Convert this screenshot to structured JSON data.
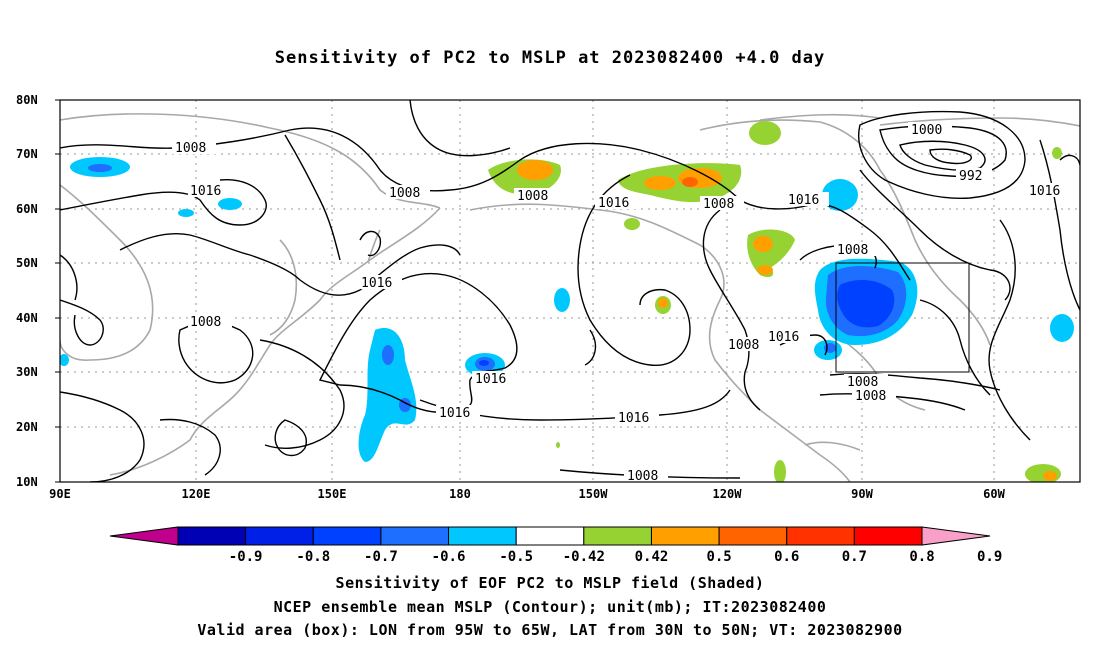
{
  "title": "Sensitivity of PC2 to MSLP at 2023082400 +4.0 day",
  "lat_ticks": [
    "80N",
    "70N",
    "60N",
    "50N",
    "40N",
    "30N",
    "20N",
    "10N"
  ],
  "lon_ticks": [
    "90E",
    "120E",
    "150E",
    "180",
    "150W",
    "120W",
    "90W",
    "60W"
  ],
  "contour_labels": [
    "1008",
    "1016",
    "1008",
    "1008",
    "1016",
    "1008",
    "1016",
    "1000",
    "992",
    "1016",
    "1008",
    "1016",
    "1008",
    "1016",
    "1016",
    "1016",
    "1008",
    "1016",
    "1008",
    "1008",
    "1008"
  ],
  "colorbar": {
    "ticks": [
      "-0.9",
      "-0.8",
      "-0.7",
      "-0.6",
      "-0.5",
      "-0.42",
      "0.42",
      "0.5",
      "0.6",
      "0.7",
      "0.8",
      "0.9"
    ],
    "colors": [
      "#c0008c",
      "#0000b4",
      "#0020e8",
      "#0040ff",
      "#1e6eff",
      "#00c8ff",
      "#ffffff",
      "#96d232",
      "#ffa000",
      "#ff6400",
      "#ff3200",
      "#ff0000",
      "#f9a0c8"
    ]
  },
  "captions": {
    "line1": "Sensitivity of EOF PC2 to MSLP field (Shaded)",
    "line2": "NCEP ensemble mean MSLP (Contour); unit(mb); IT:2023082400",
    "line3": "Valid area (box): LON from 95W to 65W, LAT from 30N to 50N; VT: 2023082900"
  }
}
